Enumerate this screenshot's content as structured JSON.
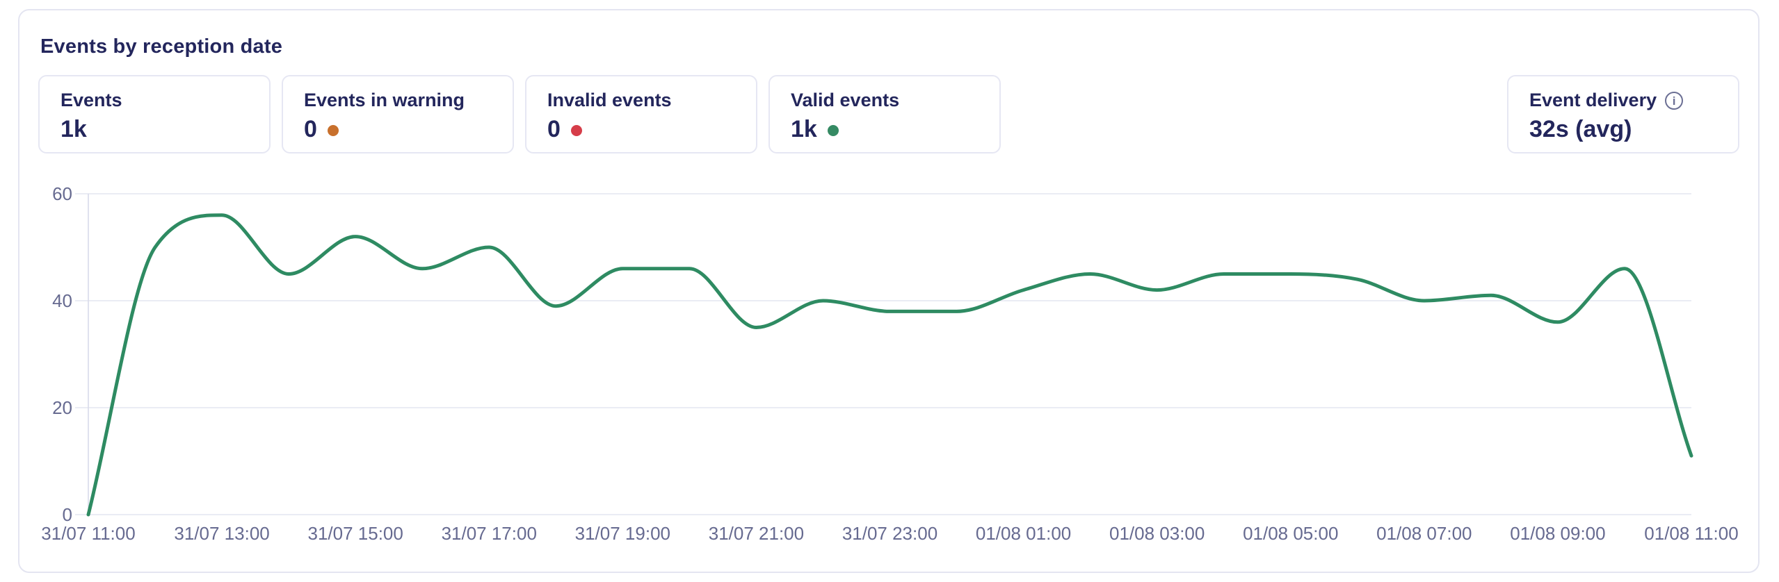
{
  "panel": {
    "title": "Events by reception date"
  },
  "stats": [
    {
      "label": "Events",
      "value": "1k",
      "dot": null
    },
    {
      "label": "Events in warning",
      "value": "0",
      "dot": "warning"
    },
    {
      "label": "Invalid events",
      "value": "0",
      "dot": "error"
    },
    {
      "label": "Valid events",
      "value": "1k",
      "dot": "success"
    }
  ],
  "delivery": {
    "label": "Event delivery",
    "info_icon": "info-circle-icon",
    "value": "32s (avg)"
  },
  "colors": {
    "line": "#2e8b62",
    "warning": "#c8702c",
    "error": "#d63d49",
    "success": "#358a63",
    "text": "#23265c",
    "axis_text": "#666a90",
    "grid": "#e4e6f0",
    "axis_line": "#d9dbe9",
    "card_border": "#e6e7f3"
  },
  "chart_data": {
    "type": "line",
    "title": "Events by reception date",
    "x": [
      "31/07 11:00",
      "31/07 12:00",
      "31/07 13:00",
      "31/07 14:00",
      "31/07 15:00",
      "31/07 16:00",
      "31/07 17:00",
      "31/07 18:00",
      "31/07 19:00",
      "31/07 20:00",
      "31/07 21:00",
      "31/07 22:00",
      "31/07 23:00",
      "01/08 00:00",
      "01/08 01:00",
      "01/08 02:00",
      "01/08 03:00",
      "01/08 04:00",
      "01/08 05:00",
      "01/08 06:00",
      "01/08 07:00",
      "01/08 08:00",
      "01/08 09:00",
      "01/08 10:00",
      "01/08 11:00"
    ],
    "values": [
      0,
      50,
      56,
      45,
      52,
      46,
      50,
      39,
      46,
      46,
      35,
      40,
      38,
      38,
      42,
      45,
      42,
      45,
      45,
      44,
      40,
      41,
      36,
      46,
      11
    ],
    "x_tick_labels": [
      "31/07 11:00",
      "31/07 13:00",
      "31/07 15:00",
      "31/07 17:00",
      "31/07 19:00",
      "31/07 21:00",
      "31/07 23:00",
      "01/08 01:00",
      "01/08 03:00",
      "01/08 05:00",
      "01/08 07:00",
      "01/08 09:00",
      "01/08 11:00"
    ],
    "y_ticks": [
      0,
      20,
      40,
      60
    ],
    "ylim": [
      0,
      60
    ],
    "xlabel": "",
    "ylabel": "",
    "grid": true,
    "legend": false,
    "smooth": true,
    "line_color": "#2e8b62"
  }
}
